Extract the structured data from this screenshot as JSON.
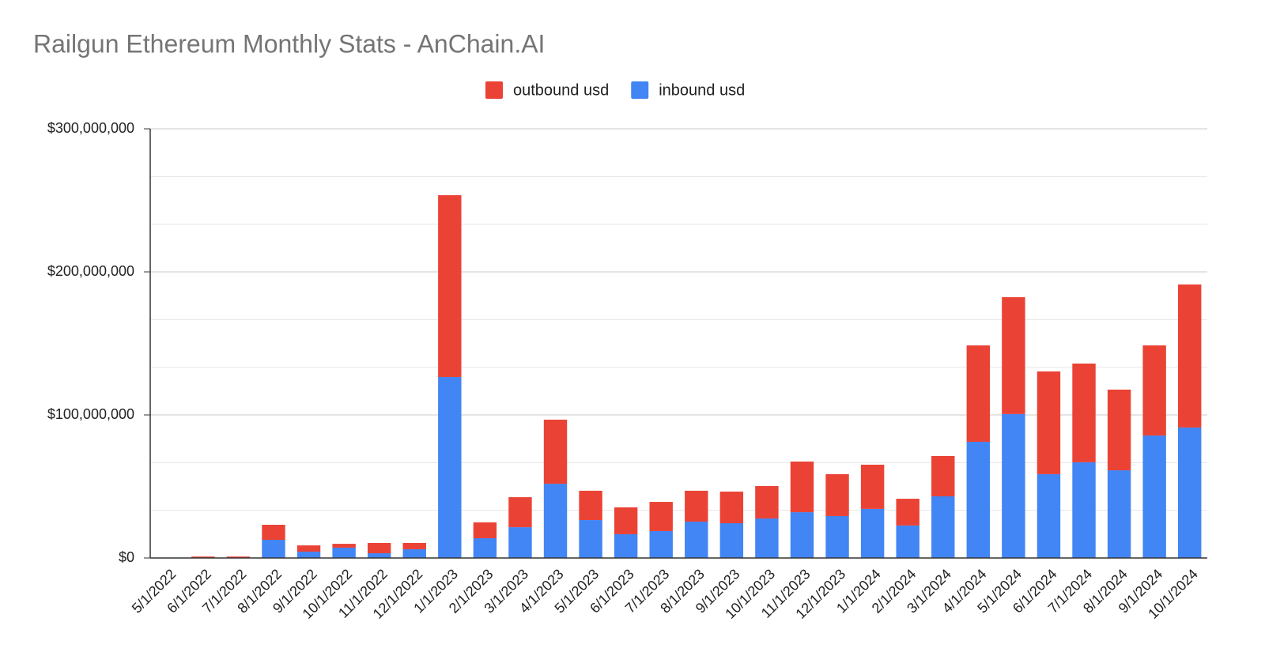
{
  "chart_data": {
    "type": "stacked_bar",
    "title": "Railgun Ethereum Monthly Stats - AnChain.AI",
    "categories": [
      "5/1/2022",
      "6/1/2022",
      "7/1/2022",
      "8/1/2022",
      "9/1/2022",
      "10/1/2022",
      "11/1/2022",
      "12/1/2022",
      "1/1/2023",
      "2/1/2023",
      "3/1/2023",
      "4/1/2023",
      "5/1/2023",
      "6/1/2023",
      "7/1/2023",
      "8/1/2023",
      "9/1/2023",
      "10/1/2023",
      "11/1/2023",
      "12/1/2023",
      "1/1/2024",
      "2/1/2024",
      "3/1/2024",
      "4/1/2024",
      "5/1/2024",
      "6/1/2024",
      "7/1/2024",
      "8/1/2024",
      "9/1/2024",
      "10/1/2024"
    ],
    "series": [
      {
        "name": "outbound usd",
        "color": "#ea4335",
        "values": [
          0,
          1000000,
          1000000,
          10500000,
          4400000,
          2700000,
          7200000,
          4400000,
          127100000,
          11100000,
          21000000,
          44800000,
          20500000,
          18800000,
          20400000,
          21600000,
          22100000,
          22700000,
          35400000,
          29300000,
          30900000,
          18700000,
          28200000,
          67400000,
          81700000,
          71800000,
          69000000,
          56400000,
          63000000,
          100000000
        ]
      },
      {
        "name": "inbound usd",
        "color": "#4285f4",
        "values": [
          0,
          0,
          0,
          12700000,
          4400000,
          7200000,
          3300000,
          6100000,
          126500000,
          13800000,
          21500000,
          51900000,
          26500000,
          16600000,
          18800000,
          25400000,
          24300000,
          27600000,
          32000000,
          29300000,
          34300000,
          22700000,
          43100000,
          81200000,
          100600000,
          58600000,
          66900000,
          61300000,
          85600000,
          91200000
        ]
      }
    ],
    "ylim": [
      0,
      300000000
    ],
    "yticks": [
      {
        "value": 0,
        "label": "$0"
      },
      {
        "value": 100000000,
        "label": "$100,000,000"
      },
      {
        "value": 200000000,
        "label": "$200,000,000"
      },
      {
        "value": 300000000,
        "label": "$300,000,000"
      }
    ],
    "grid": true,
    "legend": "top"
  }
}
